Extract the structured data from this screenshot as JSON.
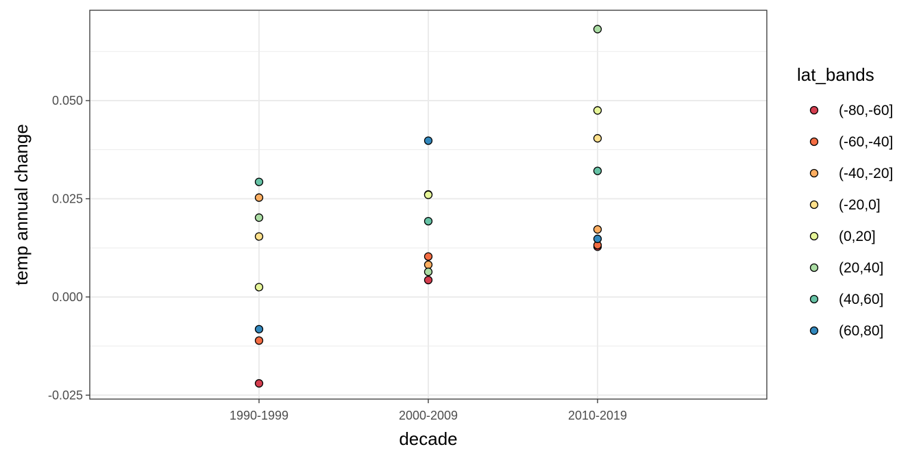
{
  "chart_data": {
    "type": "scatter",
    "xlabel": "decade",
    "ylabel": "temp annual change",
    "categories": [
      "1990-1999",
      "2000-2009",
      "2010-2019"
    ],
    "ylim": [
      -0.026,
      0.073
    ],
    "y_ticks": [
      -0.025,
      0.0,
      0.025,
      0.05
    ],
    "y_tick_labels": [
      "-0.025",
      "0.000",
      "0.025",
      "0.050"
    ],
    "grid": true,
    "legend": {
      "title": "lat_bands",
      "placement": "right"
    },
    "series": [
      {
        "name": "(-80,-60]",
        "color": "#d53e4f",
        "values": [
          -0.022,
          0.0043,
          0.0128
        ]
      },
      {
        "name": "(-60,-40]",
        "color": "#f46d43",
        "values": [
          -0.0111,
          0.0103,
          0.0132
        ]
      },
      {
        "name": "(-40,-20]",
        "color": "#fdae61",
        "values": [
          0.0253,
          0.0082,
          0.0172
        ]
      },
      {
        "name": "(-20,0]",
        "color": "#fee08b",
        "values": [
          0.0154,
          0.0261,
          0.0404
        ]
      },
      {
        "name": "(0,20]",
        "color": "#e6f598",
        "values": [
          0.0025,
          0.026,
          0.0475
        ]
      },
      {
        "name": "(20,40]",
        "color": "#abdda4",
        "values": [
          0.0202,
          0.0064,
          0.0682
        ]
      },
      {
        "name": "(40,60]",
        "color": "#66c2a5",
        "values": [
          0.0293,
          0.0193,
          0.0321
        ]
      },
      {
        "name": "(60,80]",
        "color": "#3288bd",
        "values": [
          -0.0082,
          0.0398,
          0.0148
        ]
      }
    ]
  }
}
